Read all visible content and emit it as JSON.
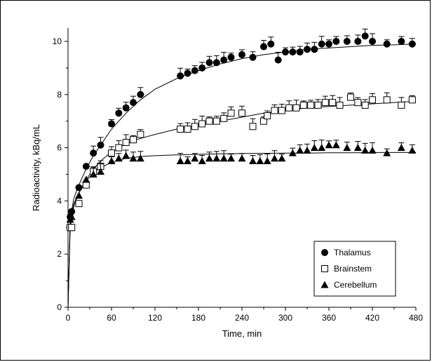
{
  "chart_data": {
    "type": "scatter",
    "xlabel": "Time, min",
    "ylabel": "Radioactivity, kBq/mL",
    "xlim": [
      0,
      480
    ],
    "ylim": [
      0,
      10.5
    ],
    "xticks": [
      0,
      60,
      120,
      180,
      240,
      300,
      360,
      420,
      480
    ],
    "yticks": [
      0,
      2,
      4,
      6,
      8,
      10
    ],
    "grid": false,
    "legend_position": "bottom-right",
    "series": [
      {
        "name": "Thalamus",
        "marker": "filled-circle",
        "x": [
          3,
          5,
          15,
          25,
          35,
          45,
          60,
          70,
          80,
          90,
          100,
          155,
          165,
          175,
          185,
          195,
          205,
          215,
          225,
          240,
          255,
          270,
          280,
          290,
          300,
          310,
          320,
          330,
          340,
          350,
          360,
          370,
          385,
          400,
          410,
          420,
          440,
          460,
          475
        ],
        "y": [
          3.4,
          3.6,
          4.5,
          5.3,
          5.8,
          6.1,
          6.9,
          7.3,
          7.5,
          7.7,
          8.0,
          8.7,
          8.8,
          8.9,
          9.0,
          9.2,
          9.2,
          9.3,
          9.4,
          9.5,
          9.4,
          9.8,
          9.9,
          9.3,
          9.6,
          9.6,
          9.6,
          9.7,
          9.7,
          9.9,
          9.9,
          10.0,
          10.0,
          10.0,
          10.2,
          10.0,
          9.9,
          10.0,
          9.9
        ],
        "fit_x": [
          0,
          3,
          8,
          15,
          25,
          35,
          45,
          60,
          80,
          100,
          120,
          150,
          180,
          210,
          240,
          270,
          300,
          330,
          360,
          390,
          420,
          450,
          480
        ],
        "fit_y": [
          0,
          3.3,
          4.1,
          4.6,
          5.2,
          5.7,
          6.1,
          6.7,
          7.3,
          7.8,
          8.2,
          8.6,
          8.9,
          9.15,
          9.35,
          9.5,
          9.6,
          9.7,
          9.75,
          9.8,
          9.85,
          9.87,
          9.9
        ]
      },
      {
        "name": "Brainstem",
        "marker": "open-square",
        "x": [
          3,
          5,
          15,
          25,
          35,
          45,
          60,
          70,
          80,
          90,
          100,
          155,
          165,
          175,
          185,
          195,
          205,
          215,
          225,
          240,
          255,
          270,
          275,
          285,
          295,
          305,
          315,
          325,
          335,
          345,
          355,
          365,
          375,
          390,
          400,
          410,
          420,
          440,
          460,
          475
        ],
        "y": [
          3.0,
          3.0,
          3.9,
          4.6,
          5.1,
          5.3,
          5.8,
          6.0,
          6.2,
          6.3,
          6.5,
          6.7,
          6.7,
          6.8,
          6.9,
          7.0,
          7.0,
          7.1,
          7.3,
          7.3,
          6.8,
          7.0,
          7.2,
          7.4,
          7.4,
          7.5,
          7.5,
          7.6,
          7.6,
          7.6,
          7.7,
          7.7,
          7.6,
          7.9,
          7.7,
          7.6,
          7.8,
          7.8,
          7.6,
          7.8
        ],
        "fit_x": [
          0,
          3,
          8,
          15,
          25,
          35,
          45,
          60,
          80,
          100,
          120,
          150,
          180,
          210,
          240,
          270,
          300,
          330,
          360,
          390,
          420,
          450,
          480
        ],
        "fit_y": [
          0,
          3.0,
          3.8,
          4.3,
          4.8,
          5.2,
          5.5,
          5.85,
          6.15,
          6.35,
          6.5,
          6.7,
          6.85,
          7.0,
          7.15,
          7.3,
          7.4,
          7.5,
          7.55,
          7.6,
          7.65,
          7.7,
          7.75
        ]
      },
      {
        "name": "Cerebellum",
        "marker": "filled-triangle",
        "x": [
          3,
          5,
          15,
          25,
          35,
          45,
          60,
          70,
          80,
          90,
          100,
          155,
          165,
          175,
          185,
          195,
          205,
          215,
          225,
          240,
          255,
          265,
          275,
          285,
          295,
          310,
          320,
          330,
          340,
          350,
          360,
          370,
          385,
          400,
          410,
          420,
          440,
          460,
          475
        ],
        "y": [
          3.3,
          3.4,
          4.2,
          4.8,
          5.0,
          5.1,
          5.5,
          5.6,
          5.7,
          5.6,
          5.6,
          5.5,
          5.5,
          5.6,
          5.5,
          5.6,
          5.6,
          5.6,
          5.6,
          5.6,
          5.5,
          5.5,
          5.5,
          5.6,
          5.6,
          5.8,
          5.9,
          5.9,
          6.0,
          6.0,
          6.1,
          6.1,
          6.0,
          6.0,
          5.9,
          5.9,
          5.8,
          6.0,
          5.9
        ],
        "fit_x": [
          0,
          3,
          8,
          15,
          25,
          35,
          45,
          60,
          80,
          100,
          120,
          150,
          180,
          210,
          240,
          270,
          300,
          330,
          360,
          390,
          420,
          450,
          480
        ],
        "fit_y": [
          0,
          3.2,
          3.9,
          4.3,
          4.75,
          5.05,
          5.25,
          5.45,
          5.6,
          5.67,
          5.7,
          5.73,
          5.75,
          5.77,
          5.78,
          5.79,
          5.8,
          5.8,
          5.81,
          5.81,
          5.82,
          5.82,
          5.82
        ]
      }
    ]
  }
}
